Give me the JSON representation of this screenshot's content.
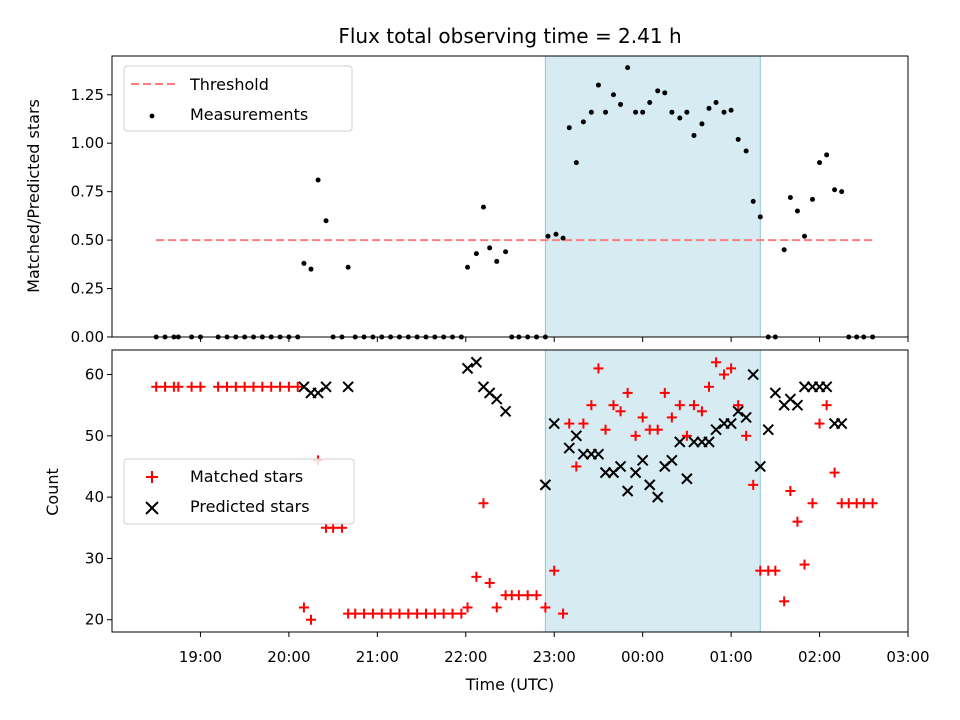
{
  "chart_data": [
    {
      "type": "scatter",
      "title": "Flux total observing time = 2.41 h",
      "xlabel": "",
      "ylabel": "Matched/Predicted stars",
      "ylim": [
        0.0,
        1.45
      ],
      "yticks": [
        "0.00",
        "0.25",
        "0.50",
        "0.75",
        "1.00",
        "1.25"
      ],
      "legend": {
        "placement": "top-left",
        "entries": [
          "Threshold",
          "Measurements"
        ]
      },
      "threshold": {
        "name": "Threshold",
        "value": 0.5,
        "x_range": [
          18.5,
          26.6
        ],
        "color": "#ff7a7a"
      },
      "shaded_interval": [
        22.9,
        25.33
      ],
      "series": [
        {
          "name": "Measurements",
          "color": "#000000",
          "x": [
            18.5,
            18.6,
            18.7,
            18.75,
            18.9,
            19.0,
            19.2,
            19.3,
            19.4,
            19.5,
            19.6,
            19.7,
            19.8,
            19.9,
            20.0,
            20.1,
            20.17,
            20.25,
            20.33,
            20.42,
            20.5,
            20.6,
            20.67,
            20.75,
            20.85,
            20.95,
            21.05,
            21.15,
            21.25,
            21.35,
            21.45,
            21.55,
            21.65,
            21.75,
            21.85,
            21.95,
            22.02,
            22.12,
            22.2,
            22.27,
            22.35,
            22.45,
            22.52,
            22.6,
            22.7,
            22.8,
            22.9,
            22.93,
            23.02,
            23.1,
            23.17,
            23.25,
            23.33,
            23.42,
            23.5,
            23.58,
            23.67,
            23.75,
            23.83,
            23.92,
            24.0,
            24.08,
            24.17,
            24.25,
            24.33,
            24.42,
            24.5,
            24.58,
            24.67,
            24.75,
            24.83,
            24.92,
            25.0,
            25.08,
            25.17,
            25.25,
            25.33,
            25.42,
            25.5,
            25.6,
            25.67,
            25.75,
            25.83,
            25.92,
            26.0,
            26.08,
            26.17,
            26.25,
            26.33,
            26.42,
            26.5,
            26.6
          ],
          "y": [
            0.0,
            0.0,
            0.0,
            0.0,
            0.0,
            0.0,
            0.0,
            0.0,
            0.0,
            0.0,
            0.0,
            0.0,
            0.0,
            0.0,
            0.0,
            0.0,
            0.38,
            0.35,
            0.81,
            0.6,
            0.0,
            0.0,
            0.36,
            0.0,
            0.0,
            0.0,
            0.0,
            0.0,
            0.0,
            0.0,
            0.0,
            0.0,
            0.0,
            0.0,
            0.0,
            0.0,
            0.36,
            0.43,
            0.67,
            0.46,
            0.39,
            0.44,
            0.0,
            0.0,
            0.0,
            0.0,
            0.0,
            0.52,
            0.53,
            0.51,
            1.08,
            0.9,
            1.11,
            1.16,
            1.3,
            1.16,
            1.25,
            1.2,
            1.39,
            1.16,
            1.16,
            1.21,
            1.27,
            1.26,
            1.16,
            1.13,
            1.16,
            1.04,
            1.1,
            1.18,
            1.21,
            1.16,
            1.17,
            1.02,
            0.96,
            0.7,
            0.62,
            0.0,
            0.0,
            0.45,
            0.72,
            0.65,
            0.52,
            0.71,
            0.9,
            0.94,
            0.76,
            0.75,
            0.0,
            0.0,
            0.0,
            0.0
          ]
        }
      ]
    },
    {
      "type": "scatter",
      "title": "",
      "xlabel": "Time (UTC)",
      "ylabel": "Count",
      "ylim": [
        18,
        64
      ],
      "yticks": [
        "20",
        "30",
        "40",
        "50",
        "60"
      ],
      "xlim": [
        18.0,
        27.0
      ],
      "xtick_values": [
        19,
        20,
        21,
        22,
        23,
        24,
        25,
        26,
        27
      ],
      "xticks": [
        "19:00",
        "20:00",
        "21:00",
        "22:00",
        "23:00",
        "00:00",
        "01:00",
        "02:00",
        "03:00"
      ],
      "legend": {
        "placement": "center-left",
        "entries": [
          "Matched stars",
          "Predicted stars"
        ]
      },
      "shaded_interval": [
        22.9,
        25.33
      ],
      "series": [
        {
          "name": "Matched stars",
          "marker": "plus",
          "color": "#ff0000",
          "x": [
            18.5,
            18.6,
            18.7,
            18.75,
            18.9,
            19.0,
            19.2,
            19.3,
            19.4,
            19.5,
            19.6,
            19.7,
            19.8,
            19.9,
            20.0,
            20.1,
            20.17,
            20.25,
            20.33,
            20.42,
            20.5,
            20.6,
            20.67,
            20.75,
            20.85,
            20.95,
            21.05,
            21.15,
            21.25,
            21.35,
            21.45,
            21.55,
            21.65,
            21.75,
            21.85,
            21.95,
            22.02,
            22.12,
            22.2,
            22.27,
            22.35,
            22.45,
            22.52,
            22.6,
            22.7,
            22.8,
            22.9,
            23.0,
            23.1,
            23.17,
            23.25,
            23.33,
            23.42,
            23.5,
            23.58,
            23.67,
            23.75,
            23.83,
            23.92,
            24.0,
            24.08,
            24.17,
            24.25,
            24.33,
            24.42,
            24.5,
            24.58,
            24.67,
            24.75,
            24.83,
            24.92,
            25.0,
            25.08,
            25.17,
            25.25,
            25.33,
            25.42,
            25.5,
            25.6,
            25.67,
            25.75,
            25.83,
            25.92,
            26.0,
            26.08,
            26.17,
            26.25,
            26.33,
            26.42,
            26.5,
            26.6
          ],
          "y": [
            58,
            58,
            58,
            58,
            58,
            58,
            58,
            58,
            58,
            58,
            58,
            58,
            58,
            58,
            58,
            58,
            22,
            20,
            46,
            35,
            35,
            35,
            21,
            21,
            21,
            21,
            21,
            21,
            21,
            21,
            21,
            21,
            21,
            21,
            21,
            21,
            22,
            27,
            39,
            26,
            22,
            24,
            24,
            24,
            24,
            24,
            22,
            28,
            21,
            52,
            45,
            52,
            55,
            61,
            51,
            55,
            54,
            57,
            50,
            53,
            51,
            51,
            57,
            53,
            55,
            50,
            55,
            54,
            58,
            62,
            60,
            61,
            55,
            50,
            42,
            28,
            28,
            28,
            23,
            41,
            36,
            29,
            39,
            52,
            55,
            44,
            39,
            39,
            39,
            39,
            39
          ]
        },
        {
          "name": "Predicted stars",
          "marker": "x",
          "color": "#000000",
          "x": [
            20.17,
            20.25,
            20.33,
            20.42,
            20.67,
            22.02,
            22.12,
            22.2,
            22.27,
            22.35,
            22.45,
            22.9,
            23.0,
            23.17,
            23.25,
            23.33,
            23.42,
            23.5,
            23.58,
            23.67,
            23.75,
            23.83,
            23.92,
            24.0,
            24.08,
            24.17,
            24.25,
            24.33,
            24.42,
            24.5,
            24.58,
            24.67,
            24.75,
            24.83,
            24.92,
            25.0,
            25.08,
            25.17,
            25.25,
            25.33,
            25.42,
            25.5,
            25.6,
            25.67,
            25.75,
            25.83,
            25.92,
            26.0,
            26.08,
            26.17,
            26.25
          ],
          "y": [
            58,
            57,
            57,
            58,
            58,
            61,
            62,
            58,
            57,
            56,
            54,
            42,
            52,
            48,
            50,
            47,
            47,
            47,
            44,
            44,
            45,
            41,
            44,
            46,
            42,
            40,
            45,
            46,
            49,
            43,
            49,
            49,
            49,
            51,
            52,
            52,
            54,
            53,
            60,
            45,
            51,
            57,
            55,
            56,
            55,
            58,
            58,
            58,
            58,
            52,
            52
          ]
        }
      ]
    }
  ]
}
